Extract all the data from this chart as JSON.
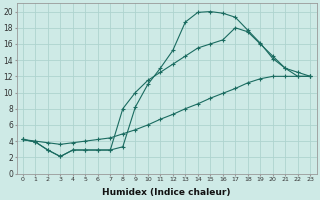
{
  "title": "",
  "xlabel": "Humidex (Indice chaleur)",
  "bg_color": "#ceeae6",
  "grid_color": "#aed4cf",
  "line_color": "#1a6b60",
  "xlim": [
    -0.5,
    23.5
  ],
  "ylim": [
    0,
    21
  ],
  "xticks": [
    0,
    1,
    2,
    3,
    4,
    5,
    6,
    7,
    8,
    9,
    10,
    11,
    12,
    13,
    14,
    15,
    16,
    17,
    18,
    19,
    20,
    21,
    22,
    23
  ],
  "yticks": [
    0,
    2,
    4,
    6,
    8,
    10,
    12,
    14,
    16,
    18,
    20
  ],
  "line1_x": [
    0,
    1,
    2,
    3,
    4,
    5,
    6,
    7,
    8,
    9,
    10,
    11,
    12,
    13,
    14,
    15,
    16,
    17,
    18,
    19,
    20,
    21,
    22,
    23
  ],
  "line1_y": [
    4.2,
    3.9,
    2.9,
    2.1,
    2.9,
    2.9,
    2.9,
    2.9,
    3.3,
    8.2,
    11.0,
    13.0,
    15.2,
    18.7,
    19.9,
    20.0,
    19.8,
    19.3,
    17.7,
    16.1,
    14.2,
    13.0,
    12.0,
    12.0
  ],
  "line2_x": [
    0,
    1,
    2,
    3,
    4,
    5,
    6,
    7,
    8,
    9,
    10,
    11,
    12,
    13,
    14,
    15,
    16,
    17,
    18,
    19,
    20,
    21,
    22,
    23
  ],
  "line2_y": [
    4.2,
    3.9,
    2.9,
    2.1,
    2.9,
    2.9,
    2.9,
    2.9,
    8.0,
    10.0,
    11.5,
    12.5,
    13.5,
    14.5,
    15.5,
    16.0,
    16.5,
    18.0,
    17.5,
    16.0,
    14.5,
    13.0,
    12.5,
    12.0
  ],
  "line3_x": [
    0,
    1,
    2,
    3,
    4,
    5,
    6,
    7,
    8,
    9,
    10,
    11,
    12,
    13,
    14,
    15,
    16,
    17,
    18,
    19,
    20,
    21,
    22,
    23
  ],
  "line3_y": [
    4.2,
    4.0,
    3.8,
    3.6,
    3.8,
    4.0,
    4.2,
    4.4,
    4.9,
    5.4,
    6.0,
    6.7,
    7.3,
    8.0,
    8.6,
    9.3,
    9.9,
    10.5,
    11.2,
    11.7,
    12.0,
    12.0,
    12.0,
    12.0
  ]
}
